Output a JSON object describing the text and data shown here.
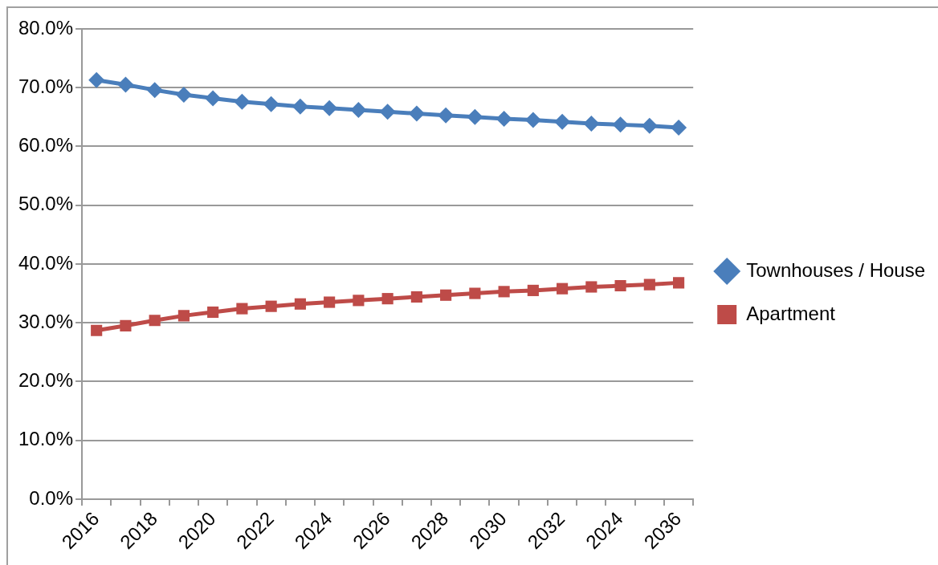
{
  "chart_data": {
    "type": "line",
    "categories": [
      "2016",
      null,
      "2018",
      null,
      "2020",
      null,
      "2022",
      null,
      "2024",
      null,
      "2026",
      null,
      "2028",
      null,
      "2030",
      null,
      "2032",
      null,
      "2024",
      null,
      "2036"
    ],
    "series": [
      {
        "name": "Townhouses / House",
        "color": "#4a7ebb",
        "marker": "diamond",
        "values": [
          71.3,
          70.5,
          69.6,
          68.8,
          68.2,
          67.6,
          67.2,
          66.8,
          66.5,
          66.2,
          65.9,
          65.6,
          65.3,
          65.0,
          64.7,
          64.5,
          64.2,
          63.9,
          63.7,
          63.5,
          63.2
        ]
      },
      {
        "name": "Apartment",
        "color": "#be4b48",
        "marker": "square",
        "values": [
          28.7,
          29.5,
          30.4,
          31.2,
          31.8,
          32.4,
          32.8,
          33.2,
          33.5,
          33.8,
          34.1,
          34.4,
          34.7,
          35.0,
          35.3,
          35.5,
          35.8,
          36.1,
          36.3,
          36.5,
          36.8
        ]
      }
    ],
    "ylim": [
      0,
      80
    ],
    "yticks": [
      {
        "value": 0,
        "label": "0.0%"
      },
      {
        "value": 10,
        "label": "10.0%"
      },
      {
        "value": 20,
        "label": "20.0%"
      },
      {
        "value": 30,
        "label": "30.0%"
      },
      {
        "value": 40,
        "label": "40.0%"
      },
      {
        "value": 50,
        "label": "50.0%"
      },
      {
        "value": 60,
        "label": "60.0%"
      },
      {
        "value": 70,
        "label": "70.0%"
      },
      {
        "value": 80,
        "label": "80.0%"
      }
    ],
    "grid": "y",
    "legend": "right"
  }
}
